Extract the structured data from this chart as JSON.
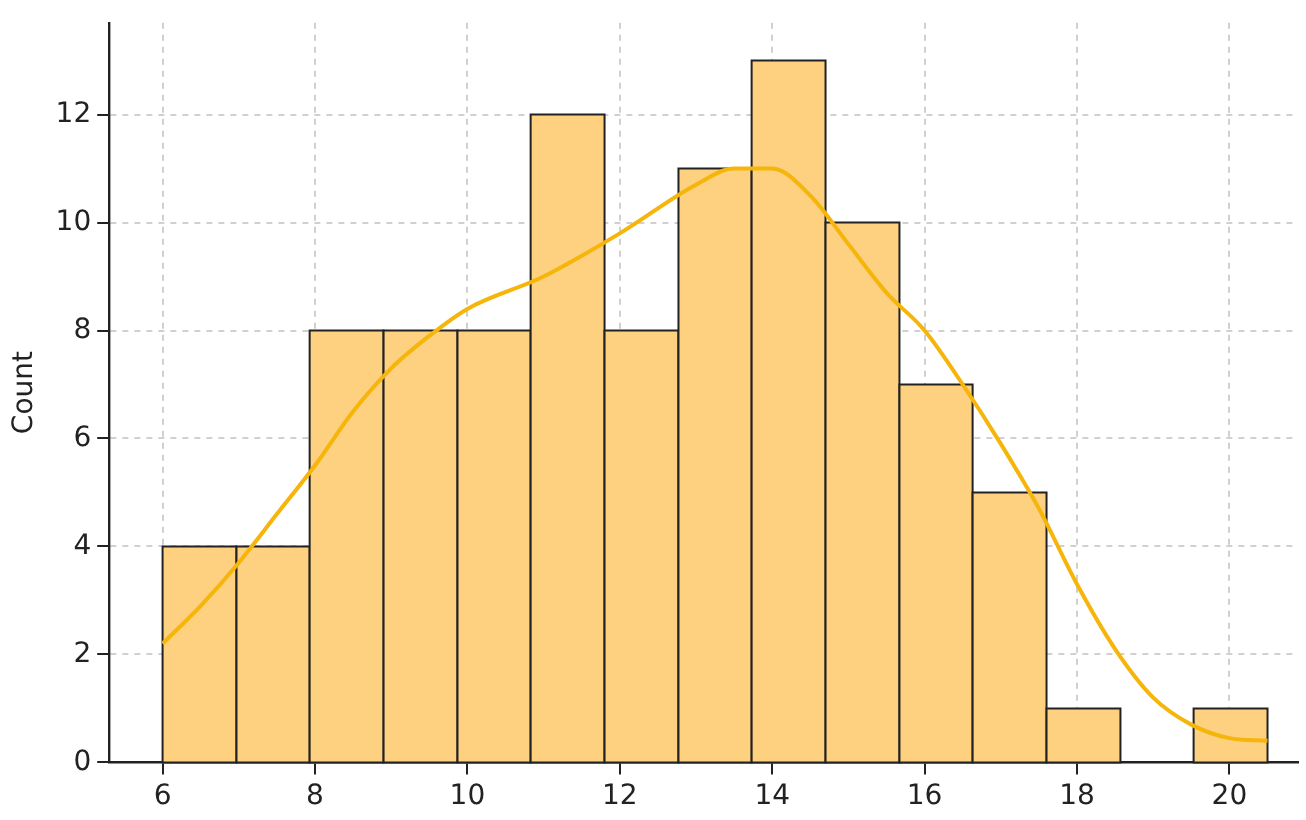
{
  "chart_data": {
    "type": "histogram",
    "ylabel": "Count",
    "bins": [
      6,
      6.97,
      7.93,
      8.9,
      9.87,
      10.83,
      11.8,
      12.77,
      13.73,
      14.7,
      15.67,
      16.63,
      17.6,
      18.57,
      19.53,
      20.5
    ],
    "values": [
      4,
      4,
      8,
      8,
      8,
      12,
      8,
      11,
      13,
      10,
      7,
      5,
      1,
      0,
      1
    ],
    "color": "#fdd17f",
    "series": [
      {
        "type": "line",
        "color": "#f5b50a",
        "x": [
          6,
          6.5,
          7,
          7.5,
          8,
          8.5,
          9,
          9.5,
          10,
          11,
          12,
          13,
          13.5,
          14,
          14.5,
          15,
          15.5,
          16,
          16.5,
          17,
          17.5,
          18,
          18.5,
          19,
          19.5,
          20,
          20.5
        ],
        "values": [
          2.2,
          2.9,
          3.7,
          4.6,
          5.5,
          6.5,
          7.3,
          7.9,
          8.4,
          9.0,
          9.8,
          10.7,
          11.0,
          11.0,
          10.5,
          9.6,
          8.7,
          8.0,
          7.0,
          5.9,
          4.7,
          3.3,
          2.1,
          1.2,
          0.7,
          0.45,
          0.4
        ]
      }
    ],
    "xlim": [
      5.3,
      20.9
    ],
    "ylim": [
      0,
      13.7
    ],
    "xticks": [
      6,
      8,
      10,
      12,
      14,
      16,
      18,
      20
    ],
    "yticks": [
      0,
      2,
      4,
      6,
      8,
      10,
      12
    ],
    "grid": true,
    "marker": "none",
    "line_style": "solid"
  }
}
